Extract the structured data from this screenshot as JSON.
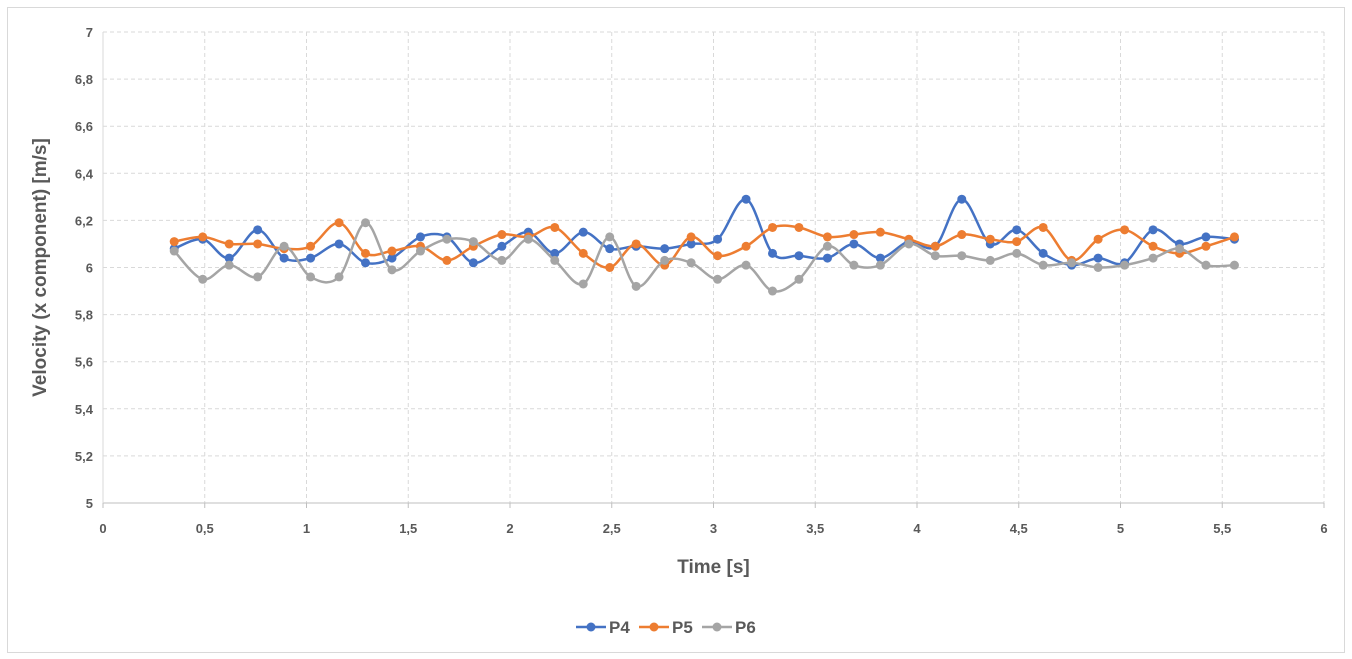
{
  "chart_data": {
    "type": "line",
    "xlabel": "Time [s]",
    "ylabel": "Velocity (x component) [m/s]",
    "xlim": [
      0,
      6
    ],
    "ylim": [
      5,
      7
    ],
    "xticks": [
      "0",
      "0,5",
      "1",
      "1,5",
      "2",
      "2,5",
      "3",
      "3,5",
      "4",
      "4,5",
      "5",
      "5,5",
      "6"
    ],
    "yticks": [
      "5",
      "5,2",
      "5,4",
      "5,6",
      "5,8",
      "6",
      "6,2",
      "6,4",
      "6,6",
      "6,8",
      "7"
    ],
    "grid": true,
    "legend_position": "bottom",
    "x": [
      0.35,
      0.49,
      0.62,
      0.76,
      0.89,
      1.02,
      1.16,
      1.29,
      1.42,
      1.56,
      1.69,
      1.82,
      1.96,
      2.09,
      2.22,
      2.36,
      2.49,
      2.62,
      2.76,
      2.89,
      3.02,
      3.16,
      3.29,
      3.42,
      3.56,
      3.69,
      3.82,
      3.96,
      4.09,
      4.22,
      4.36,
      4.49,
      4.62,
      4.76,
      4.89,
      5.02,
      5.16,
      5.29,
      5.42,
      5.56
    ],
    "series": [
      {
        "name": "P4",
        "color": "#4472c4",
        "values": [
          6.08,
          6.12,
          6.04,
          6.16,
          6.04,
          6.04,
          6.1,
          6.02,
          6.04,
          6.13,
          6.13,
          6.02,
          6.09,
          6.15,
          6.06,
          6.15,
          6.08,
          6.09,
          6.08,
          6.1,
          6.12,
          6.29,
          6.06,
          6.05,
          6.04,
          6.1,
          6.04,
          6.11,
          6.09,
          6.29,
          6.1,
          6.16,
          6.06,
          6.01,
          6.04,
          6.02,
          6.16,
          6.1,
          6.13,
          6.12
        ]
      },
      {
        "name": "P5",
        "color": "#ed7d31",
        "values": [
          6.11,
          6.13,
          6.1,
          6.1,
          6.08,
          6.09,
          6.19,
          6.06,
          6.07,
          6.09,
          6.03,
          6.09,
          6.14,
          6.13,
          6.17,
          6.06,
          6.0,
          6.1,
          6.01,
          6.13,
          6.05,
          6.09,
          6.17,
          6.17,
          6.13,
          6.14,
          6.15,
          6.12,
          6.09,
          6.14,
          6.12,
          6.11,
          6.17,
          6.03,
          6.12,
          6.16,
          6.09,
          6.06,
          6.09,
          6.13
        ]
      },
      {
        "name": "P6",
        "color": "#a5a5a5",
        "values": [
          6.07,
          5.95,
          6.01,
          5.96,
          6.09,
          5.96,
          5.96,
          6.19,
          5.99,
          6.07,
          6.12,
          6.11,
          6.03,
          6.12,
          6.03,
          5.93,
          6.13,
          5.92,
          6.03,
          6.02,
          5.95,
          6.01,
          5.9,
          5.95,
          6.09,
          6.01,
          6.01,
          6.1,
          6.05,
          6.05,
          6.03,
          6.06,
          6.01,
          6.02,
          6.0,
          6.01,
          6.04,
          6.08,
          6.01,
          6.01
        ]
      }
    ]
  }
}
